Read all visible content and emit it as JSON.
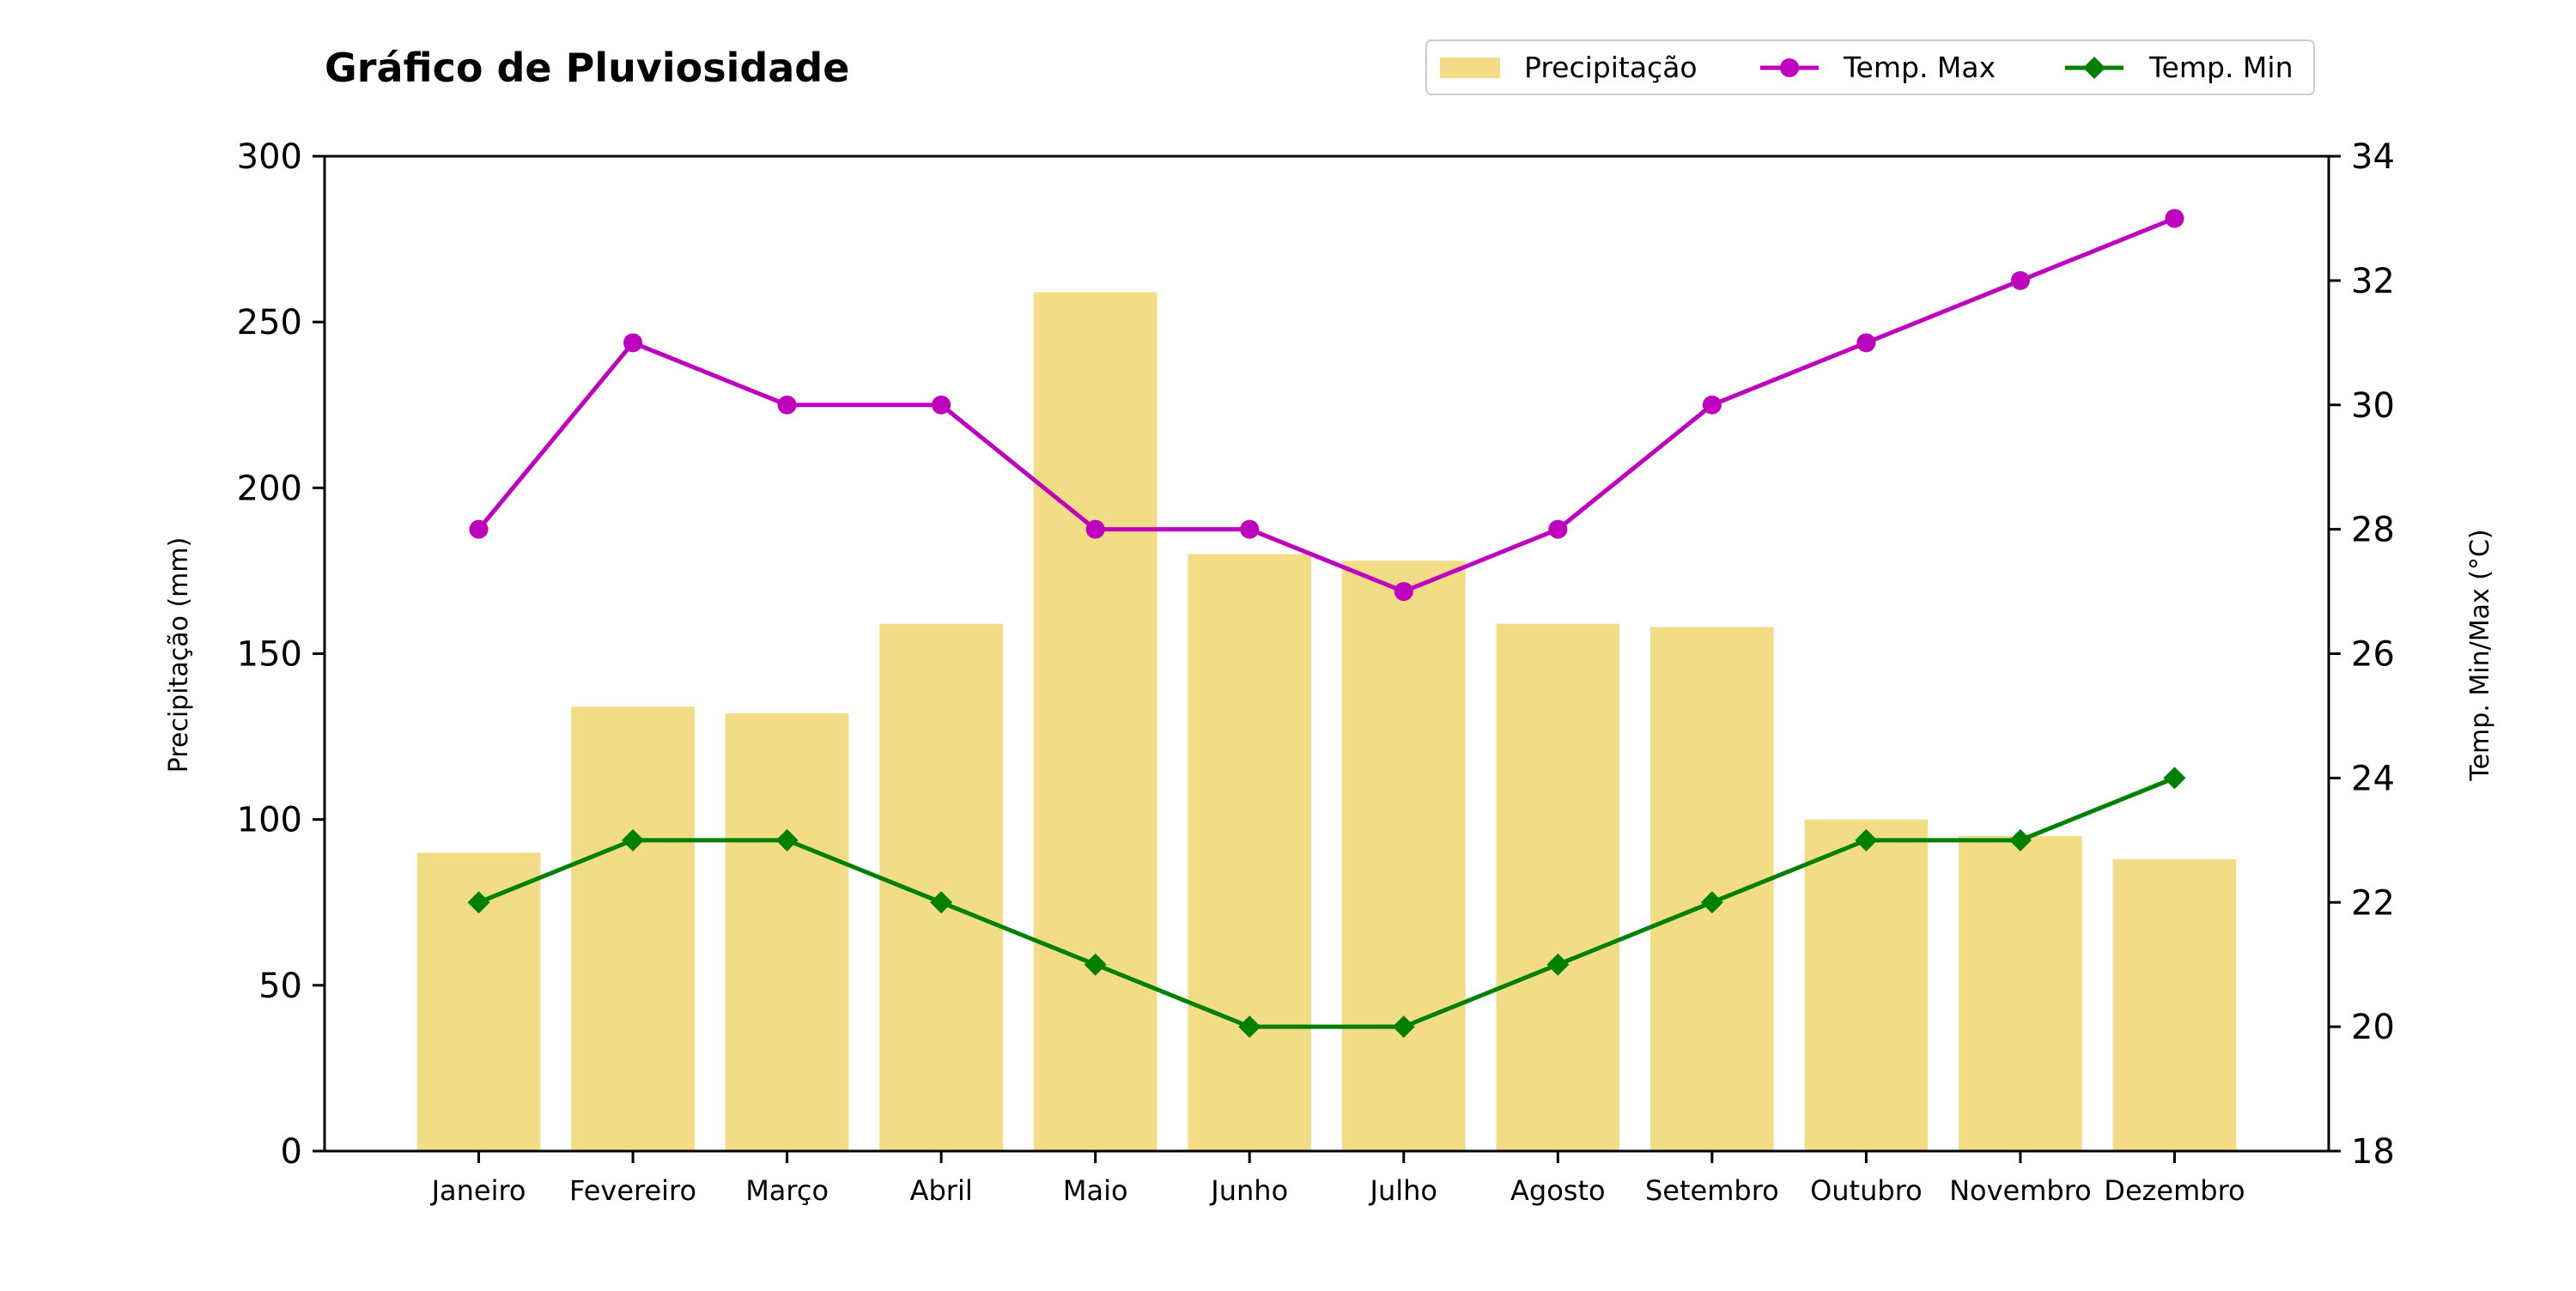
{
  "chart_data": {
    "type": "bar",
    "title": "Gráfico de Pluviosidade",
    "categories": [
      "Janeiro",
      "Fevereiro",
      "Março",
      "Abril",
      "Maio",
      "Junho",
      "Julho",
      "Agosto",
      "Setembro",
      "Outubro",
      "Novembro",
      "Dezembro"
    ],
    "ylabel": "Precipitação (mm)",
    "y2label": "Temp. Min/Max (°C)",
    "ylim": [
      0,
      300
    ],
    "y2lim": [
      18,
      34
    ],
    "yticks": [
      0,
      50,
      100,
      150,
      200,
      250,
      300
    ],
    "y2ticks": [
      18,
      20,
      22,
      24,
      26,
      28,
      30,
      32,
      34
    ],
    "grid": false,
    "legend_position": "top-right",
    "series": [
      {
        "name": "Precipitação",
        "kind": "bar",
        "axis": "left",
        "color": "#f3dc86",
        "values": [
          90,
          134,
          132,
          159,
          259,
          180,
          178,
          159,
          158,
          100,
          95,
          88
        ]
      },
      {
        "name": "Temp. Max",
        "kind": "line",
        "axis": "right",
        "marker": "circle",
        "color": "#bf00bf",
        "values": [
          28,
          31,
          30,
          30,
          28,
          28,
          27,
          28,
          30,
          31,
          32,
          33
        ]
      },
      {
        "name": "Temp. Min",
        "kind": "line",
        "axis": "right",
        "marker": "diamond",
        "color": "#008000",
        "values": [
          22,
          23,
          23,
          22,
          21,
          20,
          20,
          21,
          22,
          23,
          23,
          24
        ]
      }
    ]
  }
}
